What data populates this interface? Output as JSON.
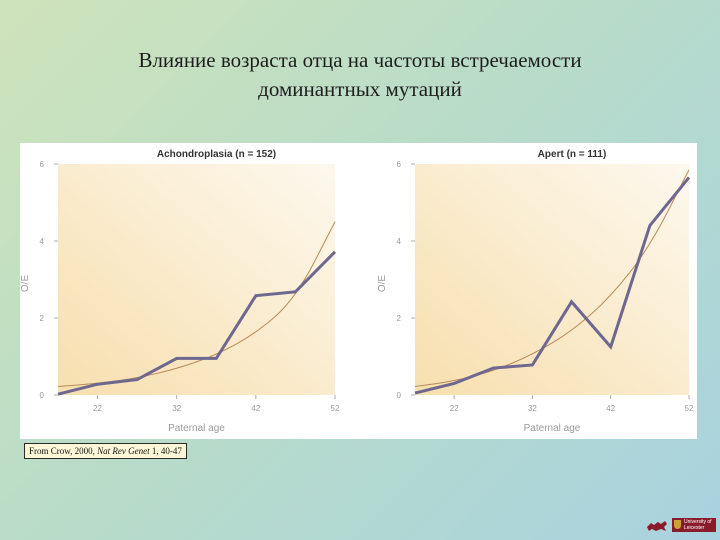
{
  "slide": {
    "title_line1": "Влияние возраста отца на частоты встречаемости",
    "title_line2": "доминантных мутаций"
  },
  "credit": {
    "prefix": "From Crow, 2000, ",
    "journal": "Nat Rev Genet",
    "suffix": " 1, 40-47"
  },
  "logo": {
    "line1": "University of",
    "line2": "Leicester"
  },
  "colors": {
    "data_line": "#6e678f",
    "fit_curve": "#b88a5a",
    "panel_bg_top": "#fdf8ee",
    "panel_bg_bottom": "#f7dfae",
    "axis_text": "#9a9a9a",
    "title_text": "#333333"
  },
  "chart_data": [
    {
      "type": "line",
      "title": "Achondroplasia (n = 152)",
      "xlabel": "Paternal age",
      "ylabel": "O/E",
      "xlim": [
        17,
        52
      ],
      "ylim": [
        0,
        6
      ],
      "xticks": [
        22,
        32,
        42,
        52
      ],
      "yticks": [
        0,
        2,
        4,
        6
      ],
      "grid": false,
      "series": [
        {
          "x": [
            17,
            22,
            27,
            32,
            37,
            42,
            47,
            52
          ],
          "y": [
            0.02,
            0.28,
            0.4,
            0.95,
            0.95,
            2.58,
            2.68,
            3.72
          ]
        },
        {
          "x": [
            17,
            22,
            27,
            32,
            37,
            42,
            47,
            52
          ],
          "y": [
            0.22,
            0.3,
            0.44,
            0.68,
            1.04,
            1.6,
            2.5,
            4.5
          ]
        }
      ]
    },
    {
      "type": "line",
      "title": "Apert (n = 111)",
      "xlabel": "Paternal age",
      "ylabel": "O/E",
      "xlim": [
        17,
        52
      ],
      "ylim": [
        0,
        6
      ],
      "xticks": [
        22,
        32,
        42,
        52
      ],
      "yticks": [
        0,
        2,
        4,
        6
      ],
      "grid": false,
      "series": [
        {
          "x": [
            17,
            22,
            27,
            32,
            37,
            42,
            47,
            52
          ],
          "y": [
            0.05,
            0.3,
            0.7,
            0.78,
            2.42,
            1.25,
            4.4,
            5.65
          ]
        },
        {
          "x": [
            17,
            22,
            27,
            32,
            37,
            42,
            47,
            52
          ],
          "y": [
            0.22,
            0.36,
            0.62,
            1.05,
            1.65,
            2.55,
            3.85,
            5.85
          ]
        }
      ]
    }
  ]
}
